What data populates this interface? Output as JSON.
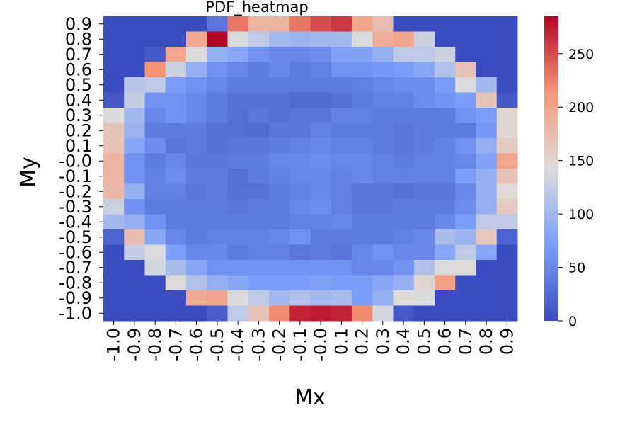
{
  "chart_data": {
    "type": "heatmap",
    "title": "PDF_heatmap",
    "xlabel": "Mx",
    "ylabel": "My",
    "x_tick_labels": [
      "-1.0",
      "-0.9",
      "-0.8",
      "-0.7",
      "-0.6",
      "-0.5",
      "-0.4",
      "-0.3",
      "-0.2",
      "-0.1",
      "-0.0",
      "0.1",
      "0.2",
      "0.3",
      "0.4",
      "0.5",
      "0.6",
      "0.7",
      "0.8",
      "0.9"
    ],
    "y_tick_labels": [
      "0.9",
      "0.8",
      "0.7",
      "0.6",
      "0.5",
      "0.4",
      "0.3",
      "0.2",
      "0.1",
      "-0.0",
      "-0.1",
      "-0.2",
      "-0.3",
      "-0.4",
      "-0.5",
      "-0.6",
      "-0.7",
      "-0.8",
      "-0.9",
      "-1.0"
    ],
    "colormap": "coolwarm",
    "vmin": 0,
    "vmax": 285,
    "colorbar_ticks": [
      0,
      50,
      100,
      150,
      200,
      250
    ],
    "grid": false,
    "values": [
      [
        0,
        0,
        0,
        0,
        0,
        35,
        230,
        185,
        185,
        230,
        250,
        260,
        200,
        175,
        0,
        0,
        0,
        0,
        0,
        0
      ],
      [
        0,
        0,
        0,
        0,
        195,
        285,
        140,
        120,
        100,
        95,
        100,
        100,
        140,
        190,
        200,
        130,
        0,
        0,
        0,
        0
      ],
      [
        0,
        0,
        10,
        200,
        140,
        90,
        80,
        60,
        50,
        50,
        55,
        75,
        75,
        90,
        120,
        120,
        130,
        0,
        0,
        0
      ],
      [
        0,
        0,
        215,
        130,
        90,
        60,
        50,
        40,
        50,
        40,
        45,
        60,
        60,
        65,
        70,
        80,
        110,
        170,
        0,
        0
      ],
      [
        0,
        115,
        120,
        70,
        60,
        50,
        40,
        40,
        40,
        40,
        40,
        40,
        45,
        50,
        55,
        55,
        70,
        140,
        100,
        0
      ],
      [
        10,
        125,
        60,
        60,
        50,
        40,
        30,
        30,
        30,
        25,
        25,
        30,
        40,
        45,
        45,
        55,
        60,
        70,
        170,
        10
      ],
      [
        140,
        100,
        50,
        60,
        50,
        40,
        30,
        35,
        30,
        35,
        35,
        45,
        45,
        40,
        40,
        40,
        40,
        60,
        70,
        150
      ],
      [
        170,
        95,
        40,
        40,
        40,
        30,
        30,
        25,
        35,
        35,
        45,
        40,
        40,
        40,
        35,
        40,
        40,
        40,
        65,
        150
      ],
      [
        170,
        80,
        55,
        35,
        40,
        30,
        35,
        35,
        40,
        45,
        50,
        45,
        45,
        40,
        35,
        40,
        45,
        60,
        90,
        160
      ],
      [
        185,
        60,
        40,
        50,
        35,
        35,
        40,
        40,
        50,
        50,
        55,
        50,
        50,
        45,
        40,
        45,
        45,
        50,
        75,
        200
      ],
      [
        185,
        60,
        45,
        55,
        40,
        40,
        30,
        40,
        45,
        50,
        50,
        45,
        50,
        45,
        45,
        45,
        45,
        70,
        90,
        170
      ],
      [
        180,
        90,
        45,
        45,
        35,
        40,
        30,
        30,
        40,
        45,
        50,
        45,
        35,
        35,
        30,
        35,
        35,
        50,
        90,
        145
      ],
      [
        130,
        60,
        40,
        40,
        40,
        40,
        35,
        40,
        40,
        50,
        55,
        45,
        35,
        35,
        40,
        40,
        40,
        55,
        90,
        160
      ],
      [
        100,
        90,
        60,
        40,
        40,
        40,
        40,
        40,
        40,
        45,
        45,
        50,
        40,
        40,
        40,
        40,
        50,
        70,
        120,
        120
      ],
      [
        20,
        175,
        80,
        50,
        40,
        45,
        45,
        45,
        50,
        60,
        40,
        40,
        40,
        40,
        45,
        50,
        105,
        95,
        165,
        20
      ],
      [
        0,
        125,
        140,
        70,
        50,
        50,
        40,
        45,
        45,
        35,
        40,
        35,
        50,
        60,
        50,
        50,
        80,
        120,
        80,
        0
      ],
      [
        0,
        0,
        135,
        105,
        80,
        60,
        60,
        60,
        60,
        60,
        60,
        60,
        50,
        50,
        60,
        110,
        140,
        145,
        0,
        0
      ],
      [
        0,
        0,
        0,
        140,
        110,
        90,
        80,
        70,
        70,
        70,
        75,
        70,
        70,
        80,
        90,
        150,
        205,
        0,
        0,
        0
      ],
      [
        0,
        0,
        0,
        0,
        195,
        200,
        140,
        120,
        100,
        110,
        100,
        105,
        70,
        90,
        145,
        140,
        0,
        0,
        0,
        0
      ],
      [
        0,
        0,
        0,
        0,
        0,
        15,
        120,
        170,
        220,
        270,
        275,
        270,
        220,
        135,
        10,
        0,
        0,
        0,
        0,
        0
      ]
    ]
  }
}
